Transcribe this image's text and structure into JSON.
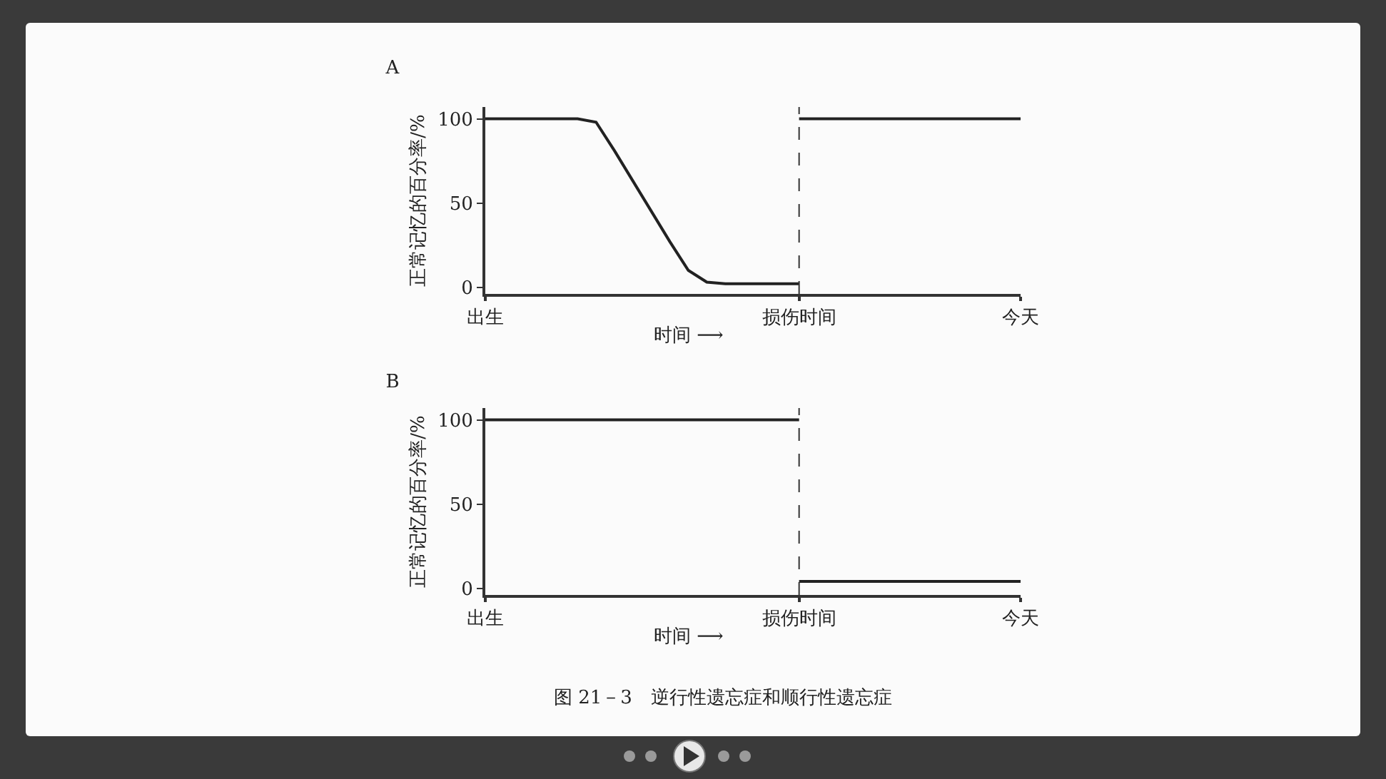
{
  "chart_data": [
    {
      "type": "line",
      "title": "A",
      "ylabel": "正常记忆的百分率/%",
      "xlabel": "时间 ⟶",
      "categories": [
        "出生",
        null,
        null,
        null,
        null,
        null,
        null,
        null,
        null,
        null,
        null,
        null,
        null,
        null,
        null,
        null,
        null,
        "损伤时间",
        null,
        null,
        null,
        null,
        null,
        null,
        null,
        null,
        null,
        null,
        null,
        "今天"
      ],
      "series": [
        {
          "color": "#222222",
          "values": [
            100,
            100,
            100,
            100,
            100,
            100,
            98,
            81,
            63,
            45,
            27,
            10,
            3,
            2,
            2,
            2,
            2,
            2,
            null,
            null,
            null,
            null,
            null,
            null,
            null,
            null,
            null,
            null,
            null,
            null
          ]
        },
        {
          "color": "#222222",
          "values": [
            null,
            null,
            null,
            null,
            null,
            null,
            null,
            null,
            null,
            null,
            null,
            null,
            null,
            null,
            null,
            null,
            null,
            100,
            100,
            100,
            100,
            100,
            100,
            100,
            100,
            100,
            100,
            100,
            100,
            100
          ]
        }
      ],
      "ylim": [
        -4,
        107
      ],
      "yticks": [
        0,
        50,
        100
      ],
      "ref_lines": [
        {
          "axis": "x",
          "value": "损伤时间",
          "line_style": "dashed",
          "color": "#333333"
        }
      ],
      "grid": false,
      "marker": "none",
      "line_style": "solid"
    },
    {
      "type": "line",
      "title": "B",
      "ylabel": "正常记忆的百分率/%",
      "xlabel": "时间 ⟶",
      "categories": [
        "出生",
        null,
        null,
        null,
        null,
        null,
        null,
        null,
        null,
        null,
        null,
        null,
        null,
        null,
        null,
        null,
        null,
        "损伤时间",
        null,
        null,
        null,
        null,
        null,
        null,
        null,
        null,
        null,
        null,
        null,
        "今天"
      ],
      "series": [
        {
          "color": "#222222",
          "values": [
            100,
            100,
            100,
            100,
            100,
            100,
            100,
            100,
            100,
            100,
            100,
            100,
            100,
            100,
            100,
            100,
            100,
            100,
            null,
            null,
            null,
            null,
            null,
            null,
            null,
            null,
            null,
            null,
            null,
            null
          ]
        },
        {
          "color": "#222222",
          "values": [
            null,
            null,
            null,
            null,
            null,
            null,
            null,
            null,
            null,
            null,
            null,
            null,
            null,
            null,
            null,
            null,
            null,
            4,
            4,
            4,
            4,
            4,
            4,
            4,
            4,
            4,
            4,
            4,
            4,
            4
          ]
        }
      ],
      "ylim": [
        -4,
        107
      ],
      "yticks": [
        0,
        50,
        100
      ],
      "ref_lines": [
        {
          "axis": "x",
          "value": "损伤时间",
          "line_style": "dashed",
          "color": "#333333"
        }
      ],
      "grid": false,
      "marker": "none",
      "line_style": "solid",
      "annotations": [
        "图 21－3　逆行性遗忘症和顺行性遗忘症"
      ]
    }
  ]
}
